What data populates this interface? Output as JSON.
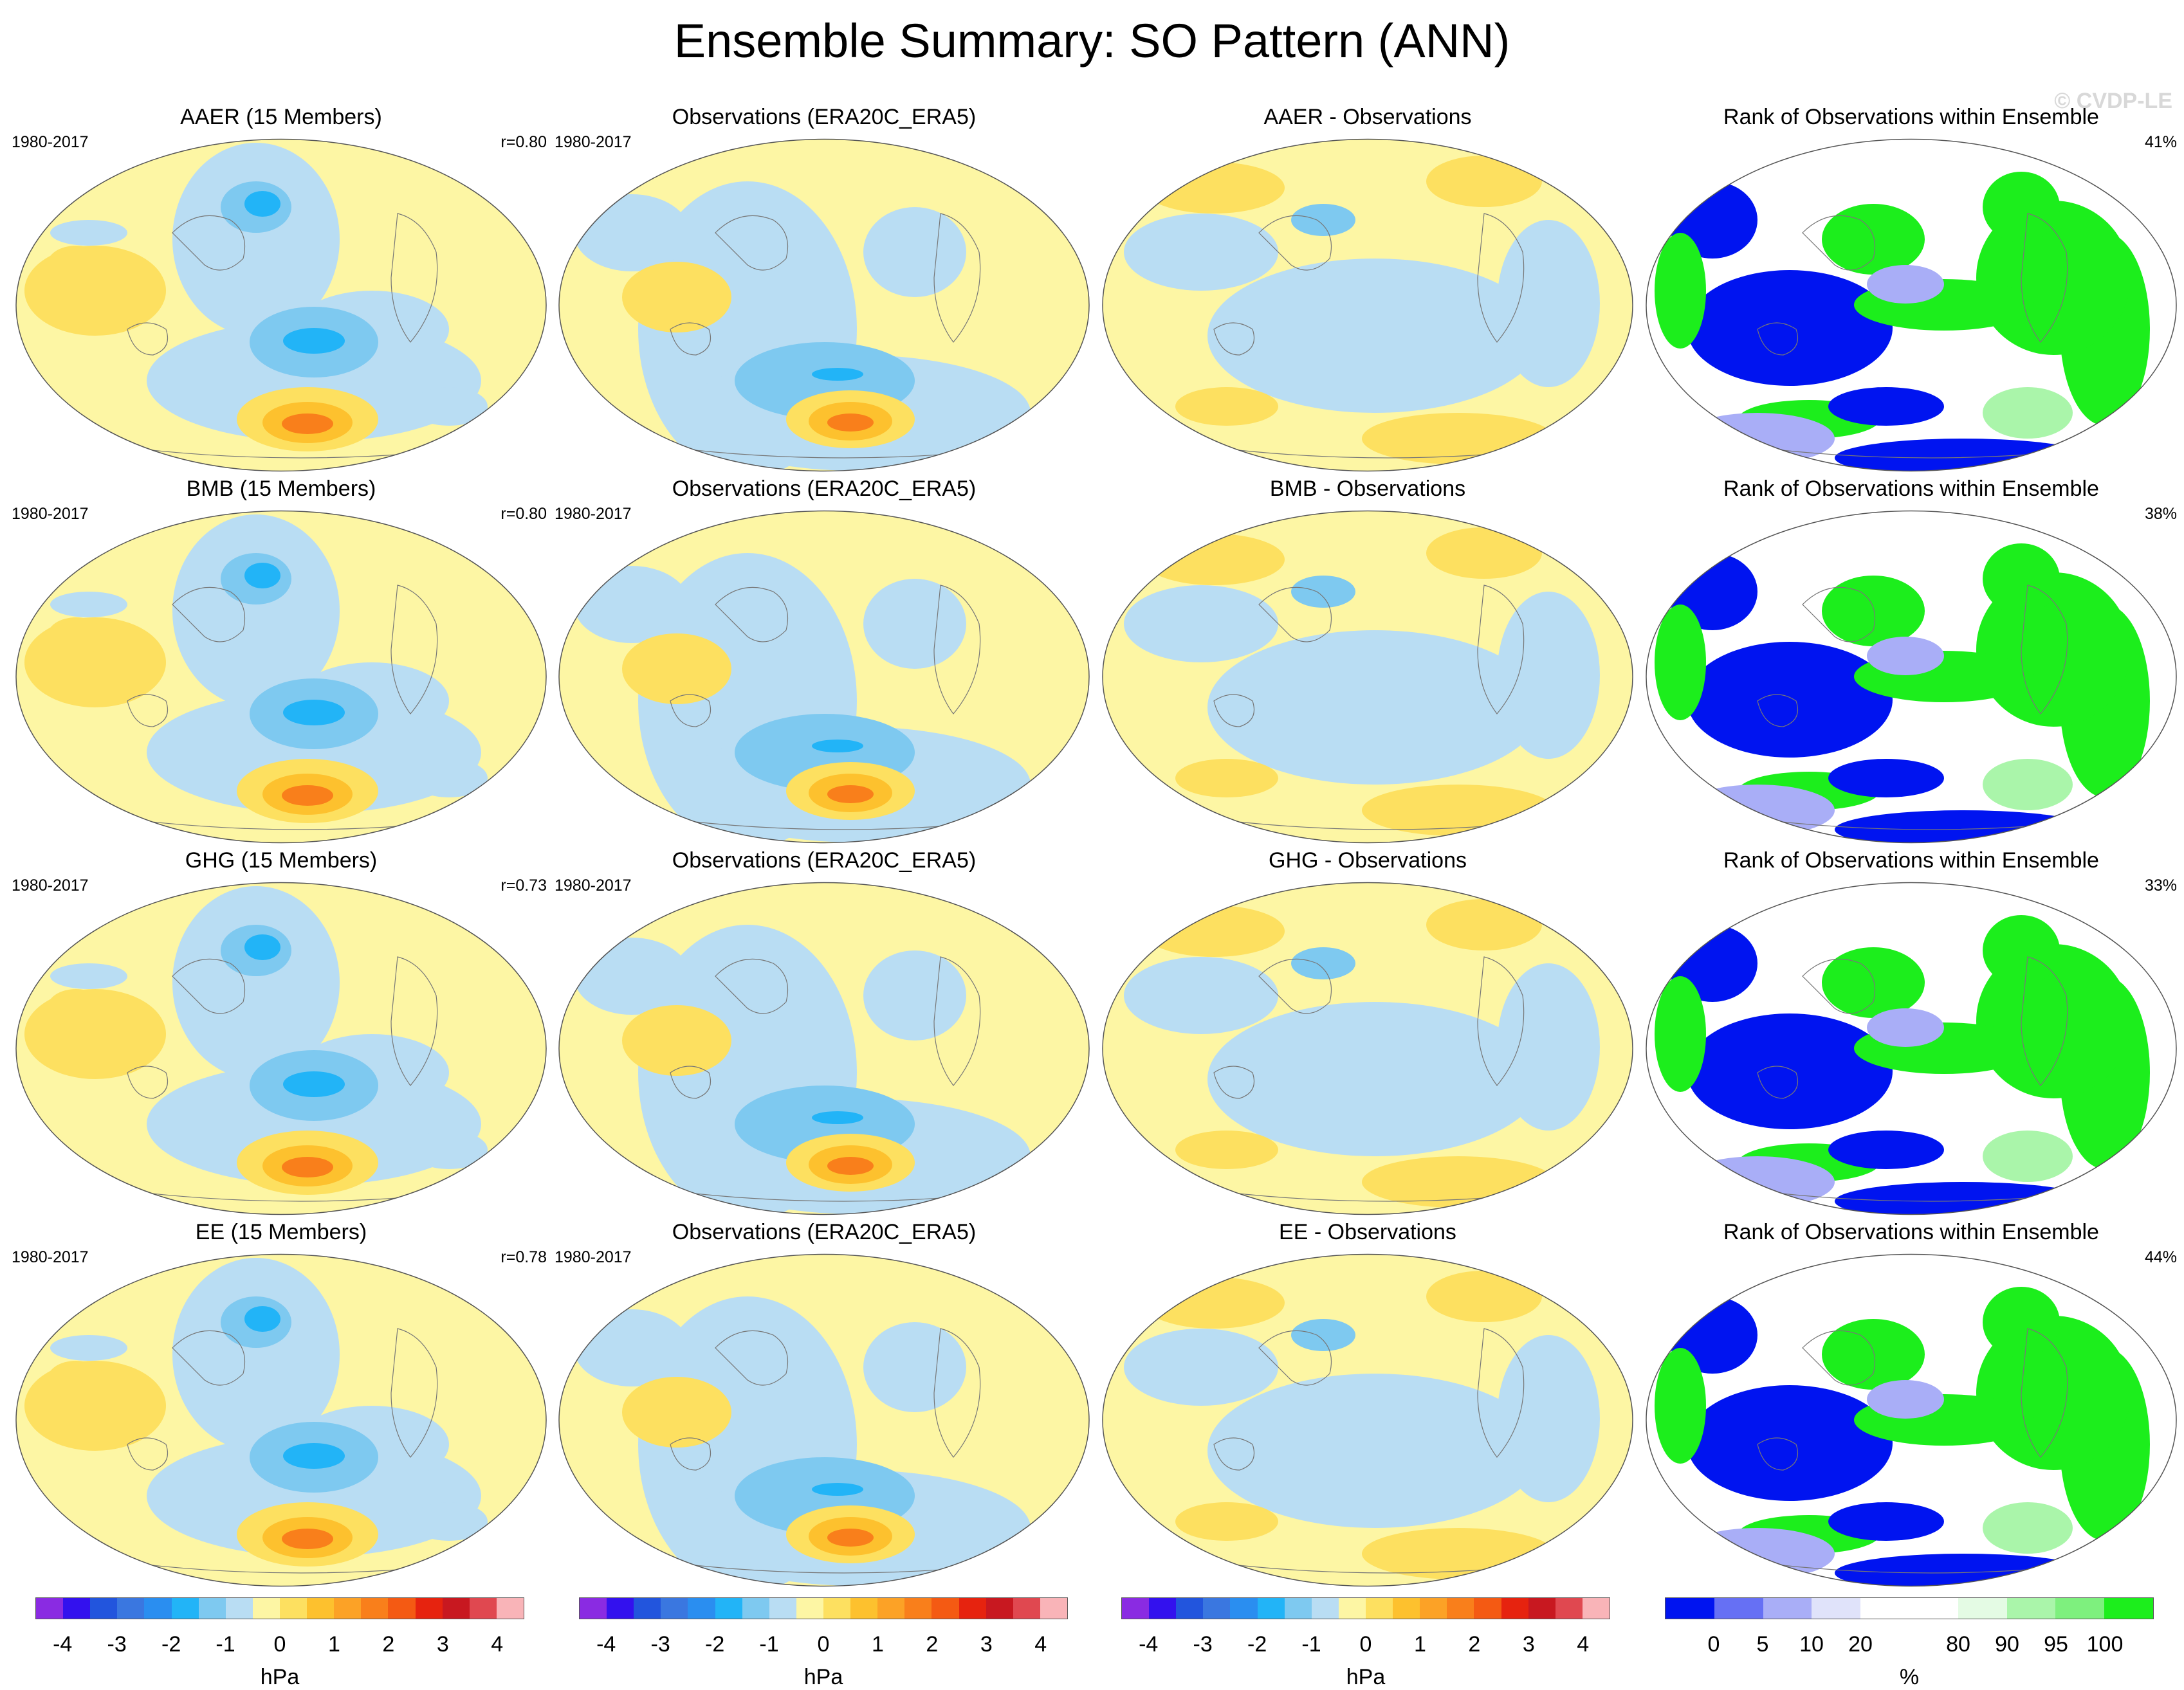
{
  "title": "Ensemble Summary: SO Pattern (ANN)",
  "watermark": "© CVDP-LE",
  "rows": [
    {
      "model_title": "AAER (15 Members)",
      "period": "1980-2017",
      "r": "r=0.80",
      "obs_title": "Observations (ERA20C_ERA5)",
      "obs_period": "1980-2017",
      "diff_title": "AAER - Observations",
      "rank_title": "Rank of Observations within Ensemble",
      "rank_pct": "41%"
    },
    {
      "model_title": "BMB (15 Members)",
      "period": "1980-2017",
      "r": "r=0.80",
      "obs_title": "Observations (ERA20C_ERA5)",
      "obs_period": "1980-2017",
      "diff_title": "BMB - Observations",
      "rank_title": "Rank of Observations within Ensemble",
      "rank_pct": "38%"
    },
    {
      "model_title": "GHG (15 Members)",
      "period": "1980-2017",
      "r": "r=0.73",
      "obs_title": "Observations (ERA20C_ERA5)",
      "obs_period": "1980-2017",
      "diff_title": "GHG - Observations",
      "rank_title": "Rank of Observations within Ensemble",
      "rank_pct": "33%"
    },
    {
      "model_title": "EE (15 Members)",
      "period": "1980-2017",
      "r": "r=0.78",
      "obs_title": "Observations (ERA20C_ERA5)",
      "obs_period": "1980-2017",
      "diff_title": "EE - Observations",
      "rank_title": "Rank of Observations within Ensemble",
      "rank_pct": "44%"
    }
  ],
  "colorbars": {
    "hpa": {
      "label": "hPa",
      "ticks": [
        "-4",
        "-3",
        "-2",
        "-1",
        "0",
        "1",
        "2",
        "3",
        "4"
      ],
      "colors": [
        "#8a2be2",
        "#3311ee",
        "#2255dd",
        "#3a77e0",
        "#2a8ef0",
        "#22b4f7",
        "#7ec9f0",
        "#b9ddf3",
        "#fdf6a4",
        "#fde060",
        "#fdc12e",
        "#fca226",
        "#f97f1b",
        "#f45a13",
        "#e6230f",
        "#c81820",
        "#e04850",
        "#f9b4b8"
      ]
    },
    "rank": {
      "label": "%",
      "ticks": [
        "0",
        "5",
        "10",
        "20",
        "80",
        "90",
        "95",
        "100"
      ],
      "colors": [
        "#0014f0",
        "#6670f4",
        "#a9aef7",
        "#e0e3fa",
        "#ffffff",
        "#ffffff",
        "#e4fbe4",
        "#aaf5aa",
        "#7ef07e",
        "#1cee1c"
      ]
    }
  },
  "map_colors": {
    "background": "#fdf6a4",
    "neg1": "#b9ddf3",
    "neg2": "#7ec9f0",
    "neg3": "#22b4f7",
    "pos1": "#fde060",
    "pos2": "#fdc12e",
    "pos3": "#f97f1b",
    "rank_blue": "#0014f0",
    "rank_lightblue": "#a9aef7",
    "rank_green": "#1cee1c",
    "rank_lightgreen": "#aaf5aa"
  }
}
